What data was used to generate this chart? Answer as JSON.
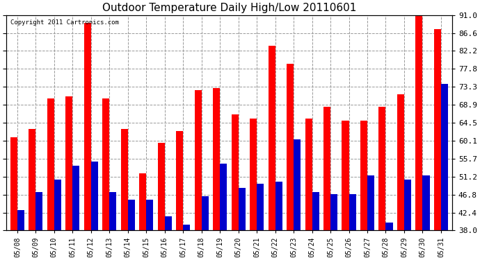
{
  "title": "Outdoor Temperature Daily High/Low 20110601",
  "copyright": "Copyright 2011 Cartronics.com",
  "dates": [
    "05/08",
    "05/09",
    "05/10",
    "05/11",
    "05/12",
    "05/13",
    "05/14",
    "05/15",
    "05/16",
    "05/17",
    "05/18",
    "05/19",
    "05/20",
    "05/21",
    "05/22",
    "05/23",
    "05/24",
    "05/25",
    "05/26",
    "05/27",
    "05/28",
    "05/29",
    "05/30",
    "05/31"
  ],
  "highs": [
    61.0,
    63.0,
    70.5,
    71.0,
    89.0,
    70.5,
    63.0,
    52.0,
    59.5,
    62.5,
    72.5,
    73.0,
    66.5,
    65.5,
    83.5,
    79.0,
    65.5,
    68.5,
    65.0,
    65.0,
    68.5,
    71.5,
    91.5,
    87.5
  ],
  "lows": [
    43.0,
    47.5,
    50.5,
    54.0,
    55.0,
    47.5,
    45.5,
    45.5,
    41.5,
    39.5,
    46.5,
    54.5,
    48.5,
    49.5,
    50.0,
    60.5,
    47.5,
    47.0,
    47.0,
    51.5,
    40.0,
    50.5,
    51.5,
    74.0
  ],
  "high_color": "#ff0000",
  "low_color": "#0000cc",
  "bg_color": "#ffffff",
  "grid_color": "#999999",
  "ymin": 38.0,
  "ymax": 91.0,
  "yticks": [
    38.0,
    42.4,
    46.8,
    51.2,
    55.7,
    60.1,
    64.5,
    68.9,
    73.3,
    77.8,
    82.2,
    86.6,
    91.0
  ],
  "bar_width": 0.38,
  "figwidth": 6.9,
  "figheight": 3.75,
  "dpi": 100
}
